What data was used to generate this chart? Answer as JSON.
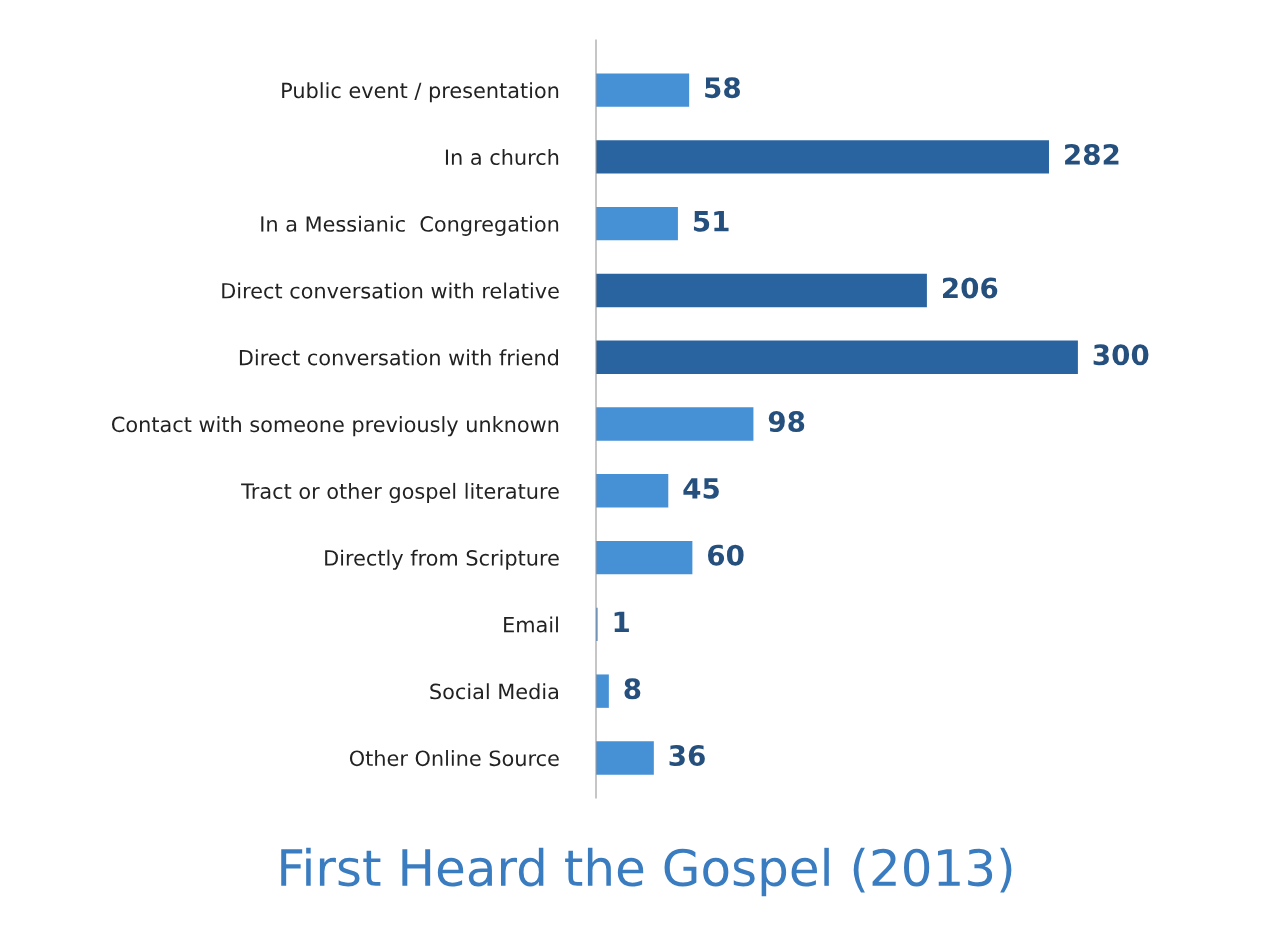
{
  "chart_data": {
    "type": "bar",
    "orientation": "horizontal",
    "title": "First Heard the Gospel (2013)",
    "categories": [
      "Public event / presentation",
      "In a church",
      "In a Messianic  Congregation",
      "Direct conversation with relative",
      "Direct conversation with friend",
      "Contact with someone previously unknown",
      "Tract or other gospel literature",
      "Directly from Scripture",
      "Email",
      "Social Media",
      "Other Online Source"
    ],
    "values": [
      58,
      282,
      51,
      206,
      300,
      98,
      45,
      60,
      1,
      8,
      36
    ],
    "colors": [
      "#4690d6",
      "#2a64a0",
      "#4690d6",
      "#2a64a0",
      "#2a64a0",
      "#4690d6",
      "#4690d6",
      "#4690d6",
      "#4690d6",
      "#4690d6",
      "#4690d6"
    ],
    "data_labels": true,
    "tick_labels": "y"
  }
}
